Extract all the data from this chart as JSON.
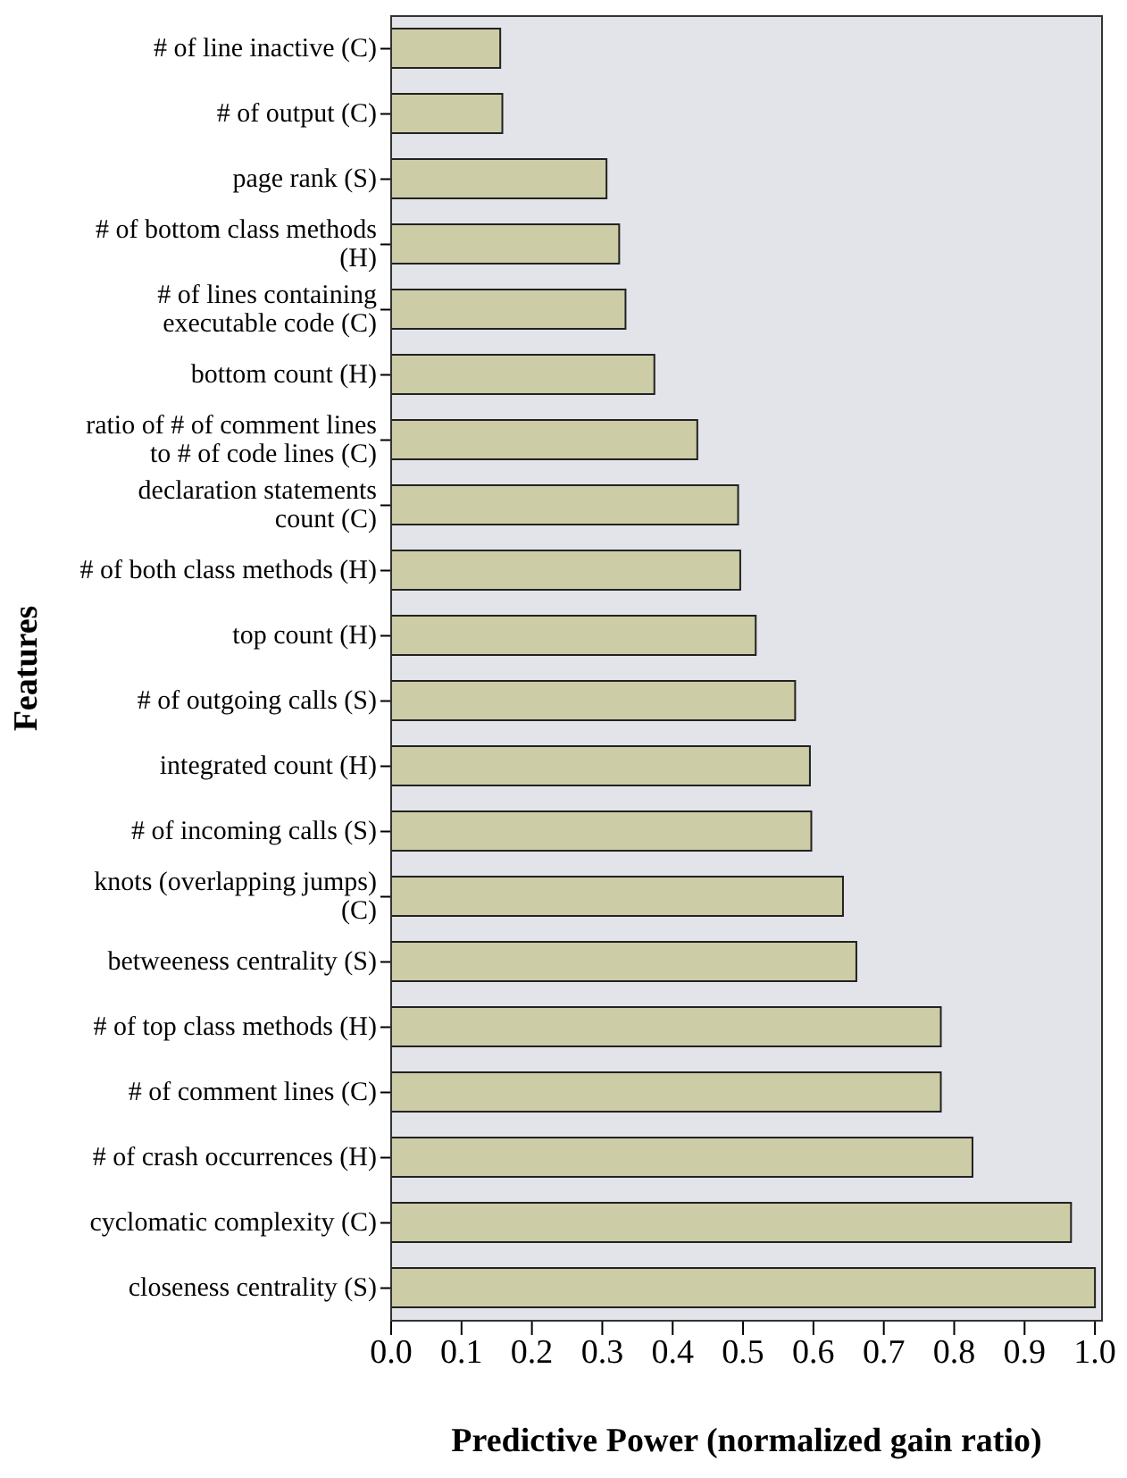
{
  "chart_data": {
    "type": "bar",
    "orientation": "horizontal",
    "xlabel": "Predictive Power (normalized gain ratio)",
    "ylabel": "Features",
    "categories": [
      "# of line inactive (C)",
      "# of output (C)",
      "page rank (S)",
      "# of bottom class methods (H)",
      "# of lines containing executable code (C)",
      "bottom count (H)",
      "ratio of # of comment lines to # of code lines (C)",
      "declaration statements count (C)",
      "# of both class methods (H)",
      "top count (H)",
      "# of outgoing calls (S)",
      "integrated count (H)",
      "# of incoming calls (S)",
      "knots (overlapping jumps) (C)",
      "betweeness centrality (S)",
      "# of top class methods (H)",
      "# of comment lines (C)",
      "# of crash occurrences (H)",
      "cyclomatic complexity (C)",
      "closeness centrality (S)"
    ],
    "values": [
      0.155,
      0.158,
      0.306,
      0.324,
      0.333,
      0.374,
      0.435,
      0.493,
      0.496,
      0.518,
      0.574,
      0.595,
      0.597,
      0.642,
      0.661,
      0.781,
      0.781,
      0.826,
      0.966,
      1.0
    ],
    "color": "#cccca6",
    "xlim": [
      0,
      1.01
    ],
    "xticks": [
      {
        "value": 0,
        "label": "0.0"
      },
      {
        "value": 0.1,
        "label": "0.1"
      },
      {
        "value": 0.2,
        "label": "0.2"
      },
      {
        "value": 0.3,
        "label": "0.3"
      },
      {
        "value": 0.4,
        "label": "0.4"
      },
      {
        "value": 0.5,
        "label": "0.5"
      },
      {
        "value": 0.6,
        "label": "0.6"
      },
      {
        "value": 0.7,
        "label": "0.7"
      },
      {
        "value": 0.8,
        "label": "0.8"
      },
      {
        "value": 0.9,
        "label": "0.9"
      },
      {
        "value": 1.0,
        "label": "1.0"
      }
    ],
    "legend": false
  }
}
